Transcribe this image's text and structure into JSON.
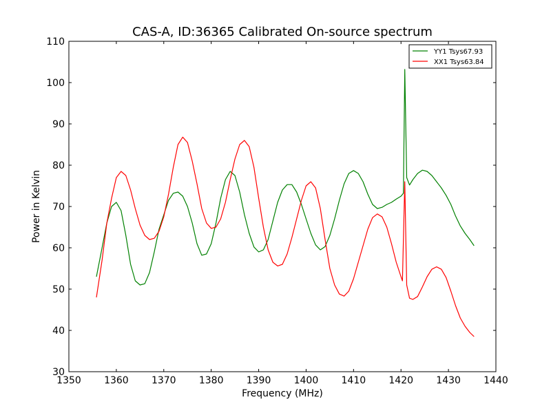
{
  "chart_data": {
    "type": "line",
    "title": "CAS-A, ID:36365 Calibrated On-source spectrum",
    "xlabel": "Frequency (MHz)",
    "ylabel": "Power in Kelvin",
    "xlim": [
      1350,
      1440
    ],
    "ylim": [
      30,
      110
    ],
    "xticks": [
      1350,
      1360,
      1370,
      1380,
      1390,
      1400,
      1410,
      1420,
      1430,
      1440
    ],
    "yticks": [
      30,
      40,
      50,
      60,
      70,
      80,
      90,
      100,
      110
    ],
    "grid": false,
    "legend_position": "top-right",
    "series": [
      {
        "name": "YY1 Tsys67.93",
        "color": "#008000",
        "points": [
          [
            1355.8,
            53
          ],
          [
            1357,
            60
          ],
          [
            1358,
            66
          ],
          [
            1359,
            70
          ],
          [
            1360,
            71
          ],
          [
            1361,
            69
          ],
          [
            1362,
            63
          ],
          [
            1363,
            56
          ],
          [
            1364,
            52
          ],
          [
            1365,
            51
          ],
          [
            1366,
            51.3
          ],
          [
            1367,
            54
          ],
          [
            1368,
            59
          ],
          [
            1369,
            64.5
          ],
          [
            1370,
            68
          ],
          [
            1371,
            71.5
          ],
          [
            1372,
            73.2
          ],
          [
            1373,
            73.5
          ],
          [
            1374,
            72.5
          ],
          [
            1375,
            70
          ],
          [
            1376,
            66
          ],
          [
            1377,
            61
          ],
          [
            1378,
            58.2
          ],
          [
            1379,
            58.5
          ],
          [
            1380,
            61
          ],
          [
            1381,
            66
          ],
          [
            1382,
            72
          ],
          [
            1383,
            76.5
          ],
          [
            1384,
            78.5
          ],
          [
            1385,
            77.5
          ],
          [
            1386,
            73.5
          ],
          [
            1387,
            68
          ],
          [
            1388,
            63.5
          ],
          [
            1389,
            60.2
          ],
          [
            1390,
            59
          ],
          [
            1391,
            59.5
          ],
          [
            1392,
            62
          ],
          [
            1393,
            66.5
          ],
          [
            1394,
            71
          ],
          [
            1395,
            74
          ],
          [
            1396,
            75.3
          ],
          [
            1397,
            75.3
          ],
          [
            1398,
            73.5
          ],
          [
            1399,
            70.5
          ],
          [
            1400,
            67
          ],
          [
            1401,
            63.5
          ],
          [
            1402,
            60.7
          ],
          [
            1403,
            59.5
          ],
          [
            1404,
            60.3
          ],
          [
            1405,
            63
          ],
          [
            1406,
            67
          ],
          [
            1407,
            71.5
          ],
          [
            1408,
            75.5
          ],
          [
            1409,
            78
          ],
          [
            1410,
            78.7
          ],
          [
            1411,
            78
          ],
          [
            1412,
            76
          ],
          [
            1413,
            73
          ],
          [
            1414,
            70.5
          ],
          [
            1415,
            69.5
          ],
          [
            1416,
            69.8
          ],
          [
            1417,
            70.5
          ],
          [
            1418,
            71
          ],
          [
            1419,
            71.8
          ],
          [
            1420,
            72.5
          ],
          [
            1420.5,
            73.2
          ],
          [
            1420.8,
            103.2
          ],
          [
            1421.2,
            77
          ],
          [
            1421.8,
            75.2
          ],
          [
            1422.5,
            76.5
          ],
          [
            1423.5,
            78
          ],
          [
            1424.5,
            78.8
          ],
          [
            1425.5,
            78.5
          ],
          [
            1426.5,
            77.5
          ],
          [
            1427.5,
            76
          ],
          [
            1428.5,
            74.5
          ],
          [
            1429.5,
            72.7
          ],
          [
            1430.5,
            70.5
          ],
          [
            1431.5,
            67.7
          ],
          [
            1432.5,
            65.3
          ],
          [
            1433.5,
            63.5
          ],
          [
            1434.5,
            62
          ],
          [
            1435.4,
            60.5
          ]
        ]
      },
      {
        "name": "XX1 Tsys63.84",
        "color": "#ff0000",
        "points": [
          [
            1355.8,
            48
          ],
          [
            1357,
            57
          ],
          [
            1358,
            66
          ],
          [
            1359,
            72
          ],
          [
            1360,
            77
          ],
          [
            1361,
            78.5
          ],
          [
            1362,
            77.5
          ],
          [
            1363,
            74
          ],
          [
            1364,
            69.5
          ],
          [
            1365,
            65.5
          ],
          [
            1366,
            63
          ],
          [
            1367,
            62
          ],
          [
            1368,
            62.3
          ],
          [
            1369,
            64
          ],
          [
            1370,
            67.5
          ],
          [
            1371,
            73
          ],
          [
            1372,
            79.5
          ],
          [
            1373,
            85
          ],
          [
            1374,
            86.8
          ],
          [
            1375,
            85.5
          ],
          [
            1376,
            81
          ],
          [
            1377,
            75.5
          ],
          [
            1378,
            69.5
          ],
          [
            1379,
            66
          ],
          [
            1380,
            64.7
          ],
          [
            1381,
            65
          ],
          [
            1382,
            67
          ],
          [
            1383,
            71
          ],
          [
            1384,
            76.5
          ],
          [
            1385,
            81.5
          ],
          [
            1386,
            85
          ],
          [
            1387,
            86
          ],
          [
            1388,
            84.5
          ],
          [
            1389,
            79.5
          ],
          [
            1390,
            72
          ],
          [
            1391,
            65
          ],
          [
            1392,
            59.5
          ],
          [
            1393,
            56.5
          ],
          [
            1394,
            55.6
          ],
          [
            1395,
            56
          ],
          [
            1396,
            58.5
          ],
          [
            1397,
            62.5
          ],
          [
            1398,
            67
          ],
          [
            1399,
            71.5
          ],
          [
            1400,
            75
          ],
          [
            1401,
            76
          ],
          [
            1402,
            74.5
          ],
          [
            1403,
            69.5
          ],
          [
            1404,
            62
          ],
          [
            1405,
            55
          ],
          [
            1406,
            51
          ],
          [
            1407,
            48.8
          ],
          [
            1408,
            48.3
          ],
          [
            1409,
            49.5
          ],
          [
            1410,
            52.5
          ],
          [
            1411,
            56.5
          ],
          [
            1412,
            60.5
          ],
          [
            1413,
            64.5
          ],
          [
            1414,
            67.3
          ],
          [
            1415,
            68.2
          ],
          [
            1416,
            67.5
          ],
          [
            1417,
            65
          ],
          [
            1418,
            61
          ],
          [
            1419,
            56.5
          ],
          [
            1420,
            53
          ],
          [
            1420.3,
            52
          ],
          [
            1420.8,
            76
          ],
          [
            1421.2,
            51
          ],
          [
            1421.8,
            47.8
          ],
          [
            1422.5,
            47.5
          ],
          [
            1423.5,
            48.2
          ],
          [
            1424.5,
            50.5
          ],
          [
            1425.5,
            53
          ],
          [
            1426.5,
            54.8
          ],
          [
            1427.5,
            55.4
          ],
          [
            1428.5,
            54.8
          ],
          [
            1429.5,
            52.8
          ],
          [
            1430.5,
            49.5
          ],
          [
            1431.5,
            46
          ],
          [
            1432.5,
            43
          ],
          [
            1433.5,
            41
          ],
          [
            1434.5,
            39.5
          ],
          [
            1435.4,
            38.5
          ]
        ]
      }
    ]
  }
}
